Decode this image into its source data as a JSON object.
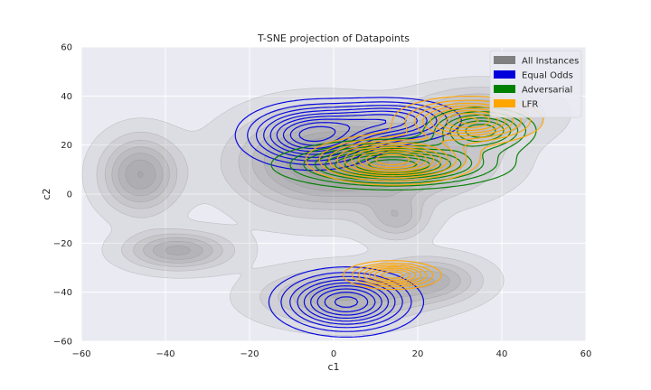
{
  "chart_data": {
    "type": "contour",
    "title": "T-SNE projection of Datapoints",
    "xlabel": "c1",
    "ylabel": "c2",
    "xlim": [
      -60,
      60
    ],
    "ylim": [
      -60,
      60
    ],
    "xticks": [
      -60,
      -40,
      -20,
      0,
      20,
      40,
      60
    ],
    "yticks": [
      -60,
      -40,
      -20,
      0,
      20,
      40,
      60
    ],
    "grid": true,
    "background": "#eaeaf2",
    "legend": {
      "position": "top-right"
    },
    "series": [
      {
        "name": "All Instances",
        "color": "#808080",
        "style": "filled",
        "levels": 9,
        "components": [
          {
            "cx": -46,
            "cy": 8,
            "sx": 6,
            "sy": 10,
            "w": 1.0
          },
          {
            "cx": -37,
            "cy": -23,
            "sx": 8,
            "sy": 5,
            "w": 0.9
          },
          {
            "cx": -4,
            "cy": 13,
            "sx": 13,
            "sy": 13,
            "w": 1.0
          },
          {
            "cx": 16,
            "cy": 14,
            "sx": 14,
            "sy": 10,
            "w": 0.9
          },
          {
            "cx": 35,
            "cy": 33,
            "sx": 10,
            "sy": 7,
            "w": 0.7
          },
          {
            "cx": 15,
            "cy": -10,
            "sx": 5,
            "sy": 6,
            "w": 0.55
          },
          {
            "cx": 2,
            "cy": -42,
            "sx": 12,
            "sy": 7,
            "w": 0.85
          },
          {
            "cx": 23,
            "cy": -35,
            "sx": 8,
            "sy": 6,
            "w": 0.75
          }
        ]
      },
      {
        "name": "Equal Odds",
        "color": "#0000dd",
        "style": "lines",
        "levels": 9,
        "components": [
          {
            "cx": -5,
            "cy": 24,
            "sx": 9,
            "sy": 7,
            "w": 1.0
          },
          {
            "cx": 14,
            "cy": 30,
            "sx": 9,
            "sy": 5,
            "w": 0.65
          },
          {
            "cx": 3,
            "cy": -44,
            "sx": 9,
            "sy": 7,
            "w": 1.0
          }
        ]
      },
      {
        "name": "Adversarial",
        "color": "#008000",
        "style": "lines",
        "levels": 9,
        "components": [
          {
            "cx": 14,
            "cy": 12,
            "sx": 14,
            "sy": 5,
            "w": 1.0
          },
          {
            "cx": 35,
            "cy": 26,
            "sx": 7,
            "sy": 5,
            "w": 0.7
          }
        ]
      },
      {
        "name": "LFR",
        "color": "#ffa500",
        "style": "lines",
        "levels": 9,
        "components": [
          {
            "cx": 14,
            "cy": 14,
            "sx": 10,
            "sy": 5,
            "w": 1.0
          },
          {
            "cx": 32,
            "cy": 30,
            "sx": 9,
            "sy": 5,
            "w": 0.85
          },
          {
            "cx": 14,
            "cy": -33,
            "sx": 6,
            "sy": 3,
            "w": 0.8
          }
        ]
      }
    ]
  }
}
